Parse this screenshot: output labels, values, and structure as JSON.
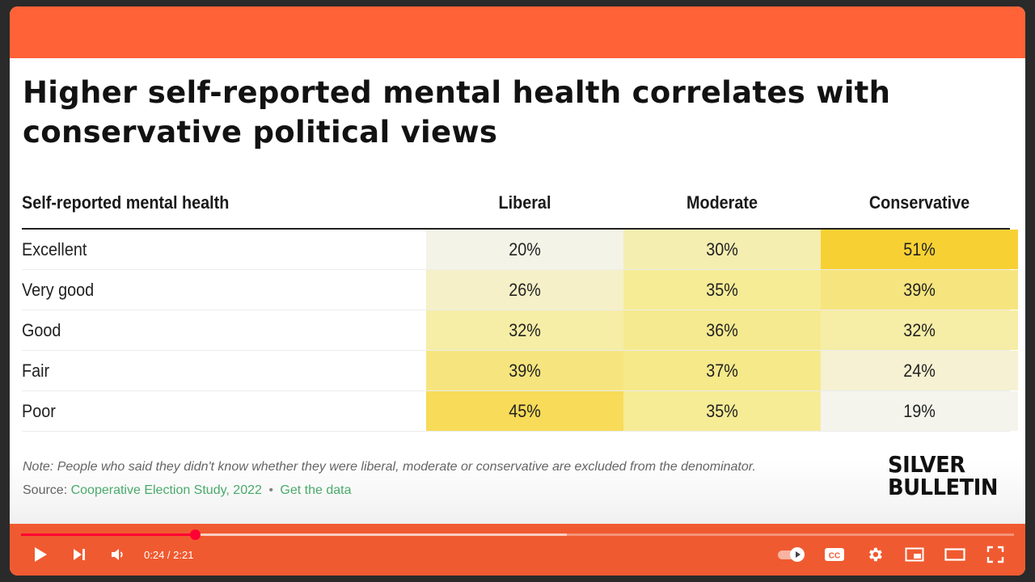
{
  "chart": {
    "title": "Higher self-reported mental health correlates with conservative political views",
    "header": {
      "row_label": "Self-reported mental health",
      "columns": [
        "Liberal",
        "Moderate",
        "Conservative"
      ]
    },
    "rows": [
      {
        "label": "Excellent",
        "values": [
          "20%",
          "30%",
          "51%"
        ]
      },
      {
        "label": "Very good",
        "values": [
          "26%",
          "35%",
          "39%"
        ]
      },
      {
        "label": "Good",
        "values": [
          "32%",
          "36%",
          "32%"
        ]
      },
      {
        "label": "Fair",
        "values": [
          "39%",
          "37%",
          "24%"
        ]
      },
      {
        "label": "Poor",
        "values": [
          "45%",
          "35%",
          "19%"
        ]
      }
    ],
    "note": "Note: People who said they didn't know whether they were liberal, moderate or conservative are excluded from the denominator.",
    "source": {
      "label": "Source:",
      "dataset_link": "Cooperative Election Study, 2022",
      "separator": "•",
      "data_link": "Get the data"
    },
    "logo": {
      "line1": "SILVER",
      "line2": "BULLETIN"
    }
  },
  "chart_data": {
    "type": "table",
    "title": "Higher self-reported mental health correlates with conservative political views",
    "row_header": "Self-reported mental health",
    "columns": [
      "Liberal",
      "Moderate",
      "Conservative"
    ],
    "rows": [
      "Excellent",
      "Very good",
      "Good",
      "Fair",
      "Poor"
    ],
    "series": [
      {
        "name": "Liberal",
        "values": [
          20,
          26,
          32,
          39,
          45
        ]
      },
      {
        "name": "Moderate",
        "values": [
          30,
          35,
          36,
          37,
          35
        ]
      },
      {
        "name": "Conservative",
        "values": [
          51,
          39,
          32,
          24,
          19
        ]
      }
    ],
    "unit": "%"
  },
  "player": {
    "current_time": "0:24",
    "duration": "2:21",
    "time_display": "0:24 / 2:21",
    "played_fraction": 0.175,
    "buffered_fraction": 0.55,
    "progress_color": "#ff0033",
    "controls": {
      "play": "play-icon",
      "next": "next-icon",
      "volume": "volume-icon",
      "autoplay": "autoplay-toggle",
      "captions": "captions-icon",
      "settings": "gear-icon",
      "miniplayer": "miniplayer-icon",
      "theater": "theater-icon",
      "fullscreen": "fullscreen-icon"
    }
  },
  "colors": {
    "brand_orange": "#ff6236",
    "heat_low": "#f4f4f2",
    "heat_high": "#f7cf2e",
    "link_green": "#4cae6e"
  }
}
